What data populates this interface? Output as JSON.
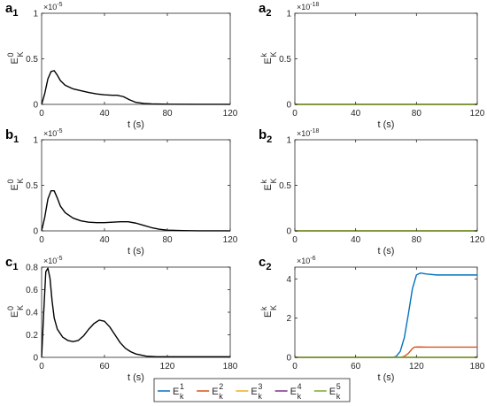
{
  "series_styles": [
    {
      "name": "E^1_k",
      "color": "#0072BD"
    },
    {
      "name": "E^2_k",
      "color": "#D95319"
    },
    {
      "name": "E^3_k",
      "color": "#EDB120"
    },
    {
      "name": "E^4_k",
      "color": "#7E2F8E"
    },
    {
      "name": "E^5_k",
      "color": "#77AC30"
    }
  ],
  "legend": {
    "entries": [
      {
        "base": "E",
        "sup": "1",
        "sub": "k"
      },
      {
        "base": "E",
        "sup": "2",
        "sub": "k"
      },
      {
        "base": "E",
        "sup": "3",
        "sub": "k"
      },
      {
        "base": "E",
        "sup": "4",
        "sub": "k"
      },
      {
        "base": "E",
        "sup": "5",
        "sub": "k"
      }
    ]
  },
  "chart_data": [
    {
      "id": "a1",
      "panel_letter": "a",
      "panel_index": "1",
      "type": "line",
      "xlabel": "t (s)",
      "ylabel": {
        "base": "E",
        "sup": "0",
        "sub": "K"
      },
      "multiplier": {
        "base": "×10",
        "exp": "-5"
      },
      "xlim": [
        0,
        120
      ],
      "ylim": [
        0,
        1
      ],
      "xticks": [
        "0",
        "40",
        "80",
        "120"
      ],
      "yticks": [
        "0",
        "0.5",
        "1"
      ],
      "series": [
        {
          "color": "#000000",
          "x": [
            0,
            2,
            4,
            6,
            8,
            10,
            12,
            15,
            20,
            25,
            30,
            35,
            40,
            45,
            48,
            52,
            56,
            60,
            65,
            70,
            80,
            100,
            120
          ],
          "y": [
            0,
            0.12,
            0.28,
            0.36,
            0.37,
            0.32,
            0.26,
            0.21,
            0.17,
            0.15,
            0.13,
            0.115,
            0.105,
            0.1,
            0.1,
            0.085,
            0.05,
            0.022,
            0.01,
            0.005,
            0.002,
            0.001,
            0.0
          ]
        }
      ]
    },
    {
      "id": "a2",
      "panel_letter": "a",
      "panel_index": "2",
      "type": "line",
      "xlabel": "t (s)",
      "ylabel": {
        "base": "E",
        "sup": "k",
        "sub": "K"
      },
      "multiplier": {
        "base": "×10",
        "exp": "-18"
      },
      "xlim": [
        0,
        120
      ],
      "ylim": [
        0,
        1
      ],
      "xticks": [
        "0",
        "40",
        "80",
        "120"
      ],
      "yticks": [
        "0",
        "0.5",
        "1"
      ],
      "series": [
        {
          "color": "#0072BD",
          "x": [
            0,
            120
          ],
          "y": [
            0,
            0
          ]
        },
        {
          "color": "#D95319",
          "x": [
            0,
            120
          ],
          "y": [
            0,
            0
          ]
        },
        {
          "color": "#EDB120",
          "x": [
            0,
            120
          ],
          "y": [
            0,
            0
          ]
        },
        {
          "color": "#7E2F8E",
          "x": [
            0,
            120
          ],
          "y": [
            0,
            0
          ]
        },
        {
          "color": "#77AC30",
          "x": [
            0,
            120
          ],
          "y": [
            0,
            0
          ]
        }
      ]
    },
    {
      "id": "b1",
      "panel_letter": "b",
      "panel_index": "1",
      "type": "line",
      "xlabel": "t (s)",
      "ylabel": {
        "base": "E",
        "sup": "0",
        "sub": "K"
      },
      "multiplier": {
        "base": "×10",
        "exp": "-5"
      },
      "xlim": [
        0,
        120
      ],
      "ylim": [
        0,
        1
      ],
      "xticks": [
        "0",
        "40",
        "80",
        "120"
      ],
      "yticks": [
        "0",
        "0.5",
        "1"
      ],
      "series": [
        {
          "color": "#000000",
          "x": [
            0,
            2,
            4,
            6,
            8,
            10,
            12,
            15,
            20,
            25,
            30,
            35,
            40,
            45,
            50,
            55,
            60,
            65,
            70,
            75,
            80,
            90,
            100,
            120
          ],
          "y": [
            0,
            0.15,
            0.35,
            0.44,
            0.44,
            0.36,
            0.27,
            0.2,
            0.14,
            0.11,
            0.095,
            0.09,
            0.09,
            0.095,
            0.1,
            0.1,
            0.085,
            0.06,
            0.035,
            0.018,
            0.008,
            0.003,
            0.001,
            0.0
          ]
        }
      ]
    },
    {
      "id": "b2",
      "panel_letter": "b",
      "panel_index": "2",
      "type": "line",
      "xlabel": "t (s)",
      "ylabel": {
        "base": "E",
        "sup": "k",
        "sub": "K"
      },
      "multiplier": {
        "base": "×10",
        "exp": "-18"
      },
      "xlim": [
        0,
        120
      ],
      "ylim": [
        0,
        1
      ],
      "xticks": [
        "0",
        "40",
        "80",
        "120"
      ],
      "yticks": [
        "0",
        "0.5",
        "1"
      ],
      "series": [
        {
          "color": "#0072BD",
          "x": [
            0,
            120
          ],
          "y": [
            0,
            0
          ]
        },
        {
          "color": "#D95319",
          "x": [
            0,
            120
          ],
          "y": [
            0,
            0
          ]
        },
        {
          "color": "#EDB120",
          "x": [
            0,
            120
          ],
          "y": [
            0,
            0
          ]
        },
        {
          "color": "#7E2F8E",
          "x": [
            0,
            120
          ],
          "y": [
            0,
            0
          ]
        },
        {
          "color": "#77AC30",
          "x": [
            0,
            120
          ],
          "y": [
            0,
            0
          ]
        }
      ]
    },
    {
      "id": "c1",
      "panel_letter": "c",
      "panel_index": "1",
      "type": "line",
      "xlabel": "t (s)",
      "ylabel": {
        "base": "E",
        "sup": "0",
        "sub": "K"
      },
      "multiplier": {
        "base": "×10",
        "exp": "-5"
      },
      "xlim": [
        0,
        180
      ],
      "ylim": [
        0,
        0.8
      ],
      "xticks": [
        "0",
        "60",
        "120",
        "180"
      ],
      "yticks": [
        "0",
        "0.2",
        "0.4",
        "0.6",
        "0.8"
      ],
      "series": [
        {
          "color": "#000000",
          "x": [
            0,
            2,
            4,
            6,
            8,
            10,
            12,
            15,
            20,
            25,
            30,
            35,
            40,
            45,
            50,
            55,
            60,
            65,
            70,
            75,
            80,
            85,
            90,
            95,
            100,
            110,
            120,
            150,
            180
          ],
          "y": [
            0,
            0.4,
            0.76,
            0.79,
            0.7,
            0.5,
            0.35,
            0.25,
            0.18,
            0.15,
            0.14,
            0.15,
            0.19,
            0.25,
            0.3,
            0.33,
            0.32,
            0.27,
            0.2,
            0.13,
            0.08,
            0.05,
            0.03,
            0.02,
            0.01,
            0.005,
            0.005,
            0.005,
            0.005
          ]
        }
      ]
    },
    {
      "id": "c2",
      "panel_letter": "c",
      "panel_index": "2",
      "type": "line",
      "xlabel": "t (s)",
      "ylabel": {
        "base": "E",
        "sup": "k",
        "sub": "K"
      },
      "multiplier": {
        "base": "×10",
        "exp": "-6"
      },
      "xlim": [
        0,
        180
      ],
      "ylim": [
        0,
        4.6
      ],
      "xticks": [
        "0",
        "60",
        "120",
        "180"
      ],
      "yticks": [
        "0",
        "2",
        "4"
      ],
      "series": [
        {
          "color": "#0072BD",
          "x": [
            0,
            96,
            100,
            104,
            108,
            112,
            116,
            120,
            124,
            130,
            140,
            160,
            180
          ],
          "y": [
            0,
            0,
            0.05,
            0.3,
            1.0,
            2.2,
            3.5,
            4.2,
            4.3,
            4.25,
            4.2,
            4.2,
            4.2
          ]
        },
        {
          "color": "#D95319",
          "x": [
            0,
            104,
            108,
            112,
            116,
            118,
            122,
            130,
            150,
            180
          ],
          "y": [
            0,
            0,
            0.05,
            0.2,
            0.45,
            0.52,
            0.53,
            0.52,
            0.52,
            0.52
          ]
        },
        {
          "color": "#EDB120",
          "x": [
            0,
            180
          ],
          "y": [
            0,
            0
          ]
        },
        {
          "color": "#7E2F8E",
          "x": [
            0,
            180
          ],
          "y": [
            0,
            0
          ]
        },
        {
          "color": "#77AC30",
          "x": [
            0,
            180
          ],
          "y": [
            0,
            0
          ]
        }
      ]
    }
  ]
}
